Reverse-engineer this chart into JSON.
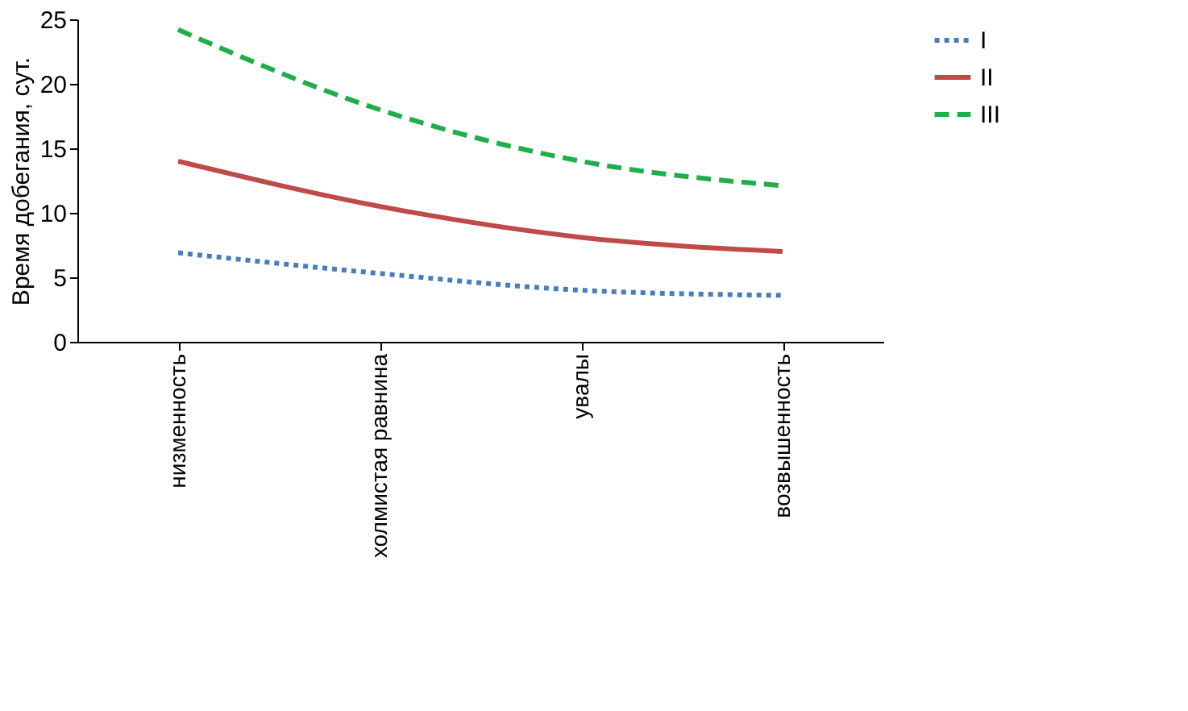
{
  "chart_data": {
    "type": "line",
    "ylabel": "Время добегания, сут.",
    "categories": [
      "низменность",
      "холмистая равнина",
      "увалы",
      "возвышенность"
    ],
    "series": [
      {
        "name": "I",
        "color": "#4a7ebb",
        "line_style": "dotted",
        "values": [
          6.9,
          5.3,
          4.0,
          3.6
        ]
      },
      {
        "name": "II",
        "color": "#be4b48",
        "line_style": "solid",
        "values": [
          14.0,
          10.5,
          8.1,
          7.0
        ]
      },
      {
        "name": "III",
        "color": "#1fae4a",
        "line_style": "dashed",
        "values": [
          24.2,
          18.0,
          14.0,
          12.1
        ]
      }
    ],
    "ylim": [
      0,
      25
    ],
    "yticks": [
      0,
      5,
      10,
      15,
      20,
      25
    ],
    "grid": false,
    "legend": "right",
    "marker": "none"
  }
}
